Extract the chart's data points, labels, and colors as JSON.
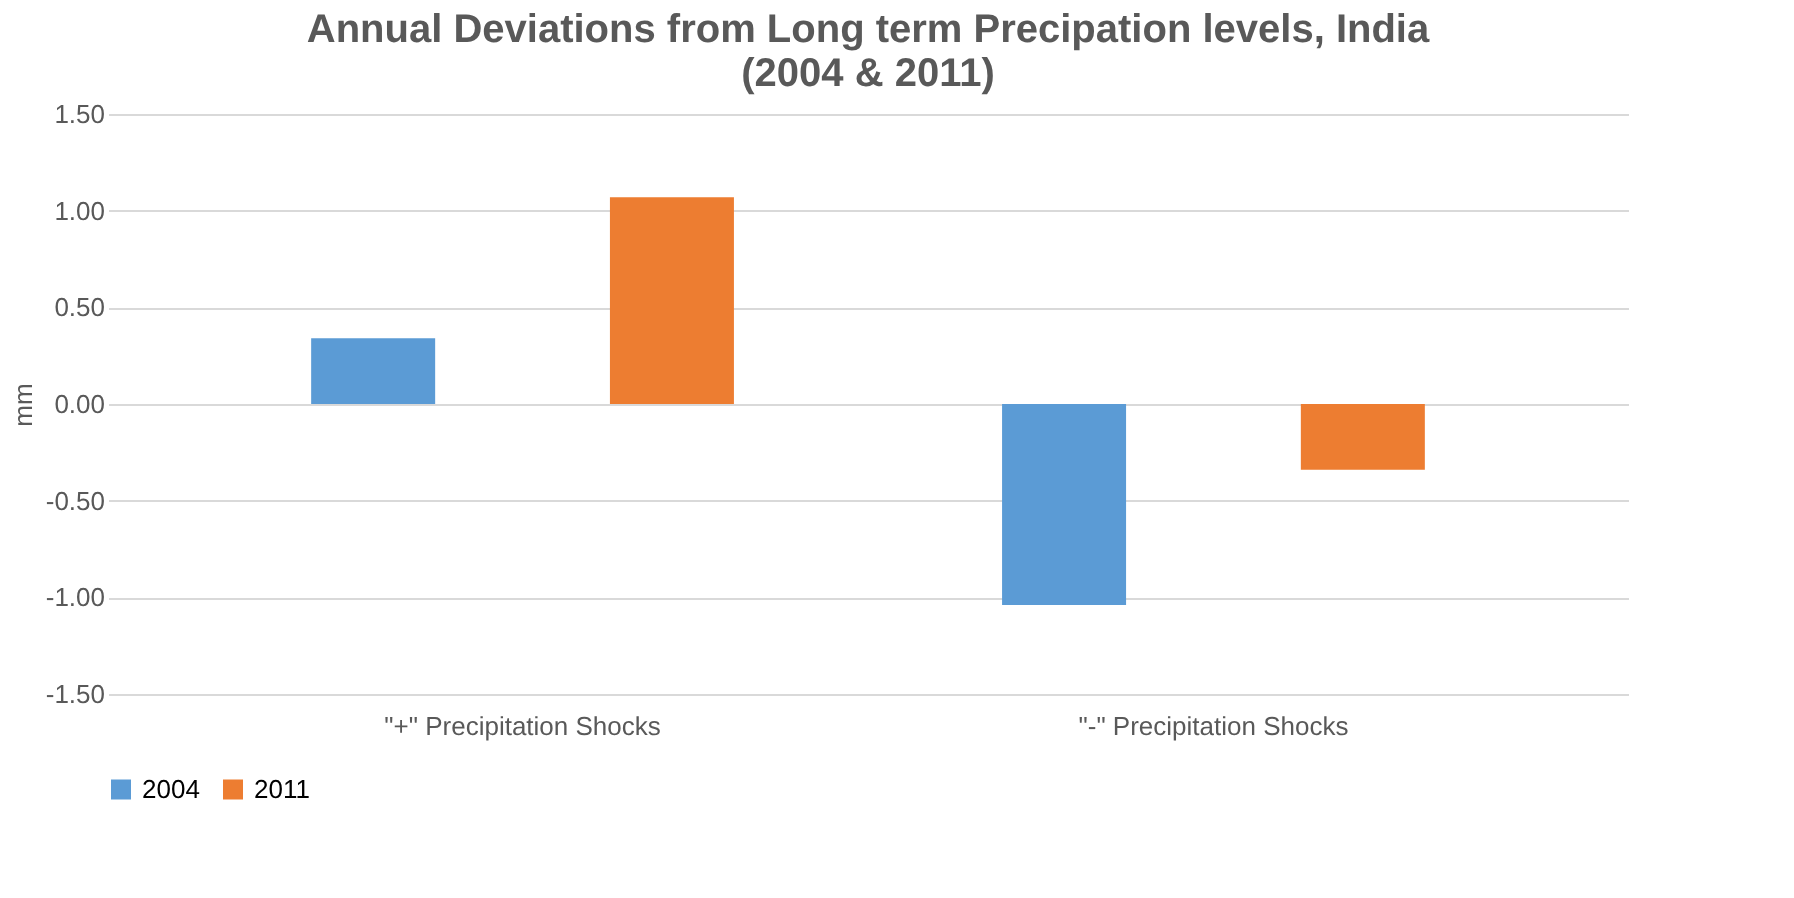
{
  "chart_data": {
    "type": "bar",
    "title": [
      "Annual Deviations from Long term Precipation levels, India",
      "(2004 & 2011)"
    ],
    "ylabel": "mm",
    "categories": [
      "\"+\" Precipitation Shocks",
      "\"-\" Precipitation Shocks"
    ],
    "series": [
      {
        "name": "2004",
        "color": "#5b9bd5",
        "values": [
          0.34,
          -1.04
        ]
      },
      {
        "name": "2011",
        "color": "#ed7d31",
        "values": [
          1.07,
          -0.34
        ]
      }
    ],
    "ylim": [
      -1.5,
      1.5
    ],
    "yticks": [
      {
        "value": -1.5,
        "label": "-1.50"
      },
      {
        "value": -1.0,
        "label": "-1.00"
      },
      {
        "value": -0.5,
        "label": "-0.50"
      },
      {
        "value": 0,
        "label": "0.00"
      },
      {
        "value": 0.5,
        "label": "0.50"
      },
      {
        "value": 1.0,
        "label": "1.00"
      },
      {
        "value": 1.5,
        "label": "1.50"
      }
    ],
    "grid": "y",
    "legend": "bottom"
  }
}
